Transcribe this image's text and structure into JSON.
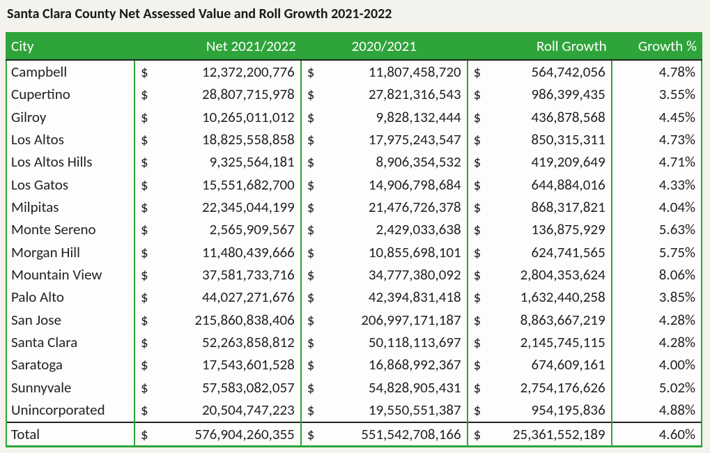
{
  "title": "Santa Clara County Net Assessed Value and Roll Growth 2021-2022",
  "colors": {
    "header_bg": "#2fa43a",
    "header_text": "#ffffff",
    "page_bg": "#f4f2ec",
    "cell_bg": "#fdfdfb",
    "text": "#222222",
    "dash_border": "#222222"
  },
  "table": {
    "type": "table",
    "columns": [
      {
        "key": "city",
        "label": "City",
        "align": "left"
      },
      {
        "key": "net",
        "label": "Net 2021/2022",
        "align": "right",
        "currency": true
      },
      {
        "key": "prev",
        "label": "2020/2021",
        "align": "center",
        "currency": true
      },
      {
        "key": "roll",
        "label": "Roll Growth",
        "align": "right",
        "currency": true
      },
      {
        "key": "growth",
        "label": "Growth %",
        "align": "right",
        "percent": true
      }
    ],
    "rows": [
      {
        "city": "Campbell",
        "net": "12,372,200,776",
        "prev": "11,807,458,720",
        "roll": "564,742,056",
        "growth": "4.78%"
      },
      {
        "city": "Cupertino",
        "net": "28,807,715,978",
        "prev": "27,821,316,543",
        "roll": "986,399,435",
        "growth": "3.55%"
      },
      {
        "city": "Gilroy",
        "net": "10,265,011,012",
        "prev": "9,828,132,444",
        "roll": "436,878,568",
        "growth": "4.45%"
      },
      {
        "city": "Los Altos",
        "net": "18,825,558,858",
        "prev": "17,975,243,547",
        "roll": "850,315,311",
        "growth": "4.73%"
      },
      {
        "city": "Los Altos Hills",
        "net": "9,325,564,181",
        "prev": "8,906,354,532",
        "roll": "419,209,649",
        "growth": "4.71%"
      },
      {
        "city": "Los Gatos",
        "net": "15,551,682,700",
        "prev": "14,906,798,684",
        "roll": "644,884,016",
        "growth": "4.33%"
      },
      {
        "city": "Milpitas",
        "net": "22,345,044,199",
        "prev": "21,476,726,378",
        "roll": "868,317,821",
        "growth": "4.04%"
      },
      {
        "city": "Monte Sereno",
        "net": "2,565,909,567",
        "prev": "2,429,033,638",
        "roll": "136,875,929",
        "growth": "5.63%"
      },
      {
        "city": "Morgan Hill",
        "net": "11,480,439,666",
        "prev": "10,855,698,101",
        "roll": "624,741,565",
        "growth": "5.75%"
      },
      {
        "city": "Mountain View",
        "net": "37,581,733,716",
        "prev": "34,777,380,092",
        "roll": "2,804,353,624",
        "growth": "8.06%"
      },
      {
        "city": "Palo Alto",
        "net": "44,027,271,676",
        "prev": "42,394,831,418",
        "roll": "1,632,440,258",
        "growth": "3.85%"
      },
      {
        "city": "San Jose",
        "net": "215,860,838,406",
        "prev": "206,997,171,187",
        "roll": "8,863,667,219",
        "growth": "4.28%"
      },
      {
        "city": "Santa Clara",
        "net": "52,263,858,812",
        "prev": "50,118,113,697",
        "roll": "2,145,745,115",
        "growth": "4.28%"
      },
      {
        "city": "Saratoga",
        "net": "17,543,601,528",
        "prev": "16,868,992,367",
        "roll": "674,609,161",
        "growth": "4.00%"
      },
      {
        "city": "Sunnyvale",
        "net": "57,583,082,057",
        "prev": "54,828,905,431",
        "roll": "2,754,176,626",
        "growth": "5.02%"
      },
      {
        "city": "Unincorporated",
        "net": "20,504,747,223",
        "prev": "19,550,551,387",
        "roll": "954,195,836",
        "growth": "4.88%"
      }
    ],
    "total": {
      "city": "Total",
      "net": "576,904,260,355",
      "prev": "551,542,708,166",
      "roll": "25,361,552,189",
      "growth": "4.60%"
    },
    "currency_symbol": "$"
  }
}
